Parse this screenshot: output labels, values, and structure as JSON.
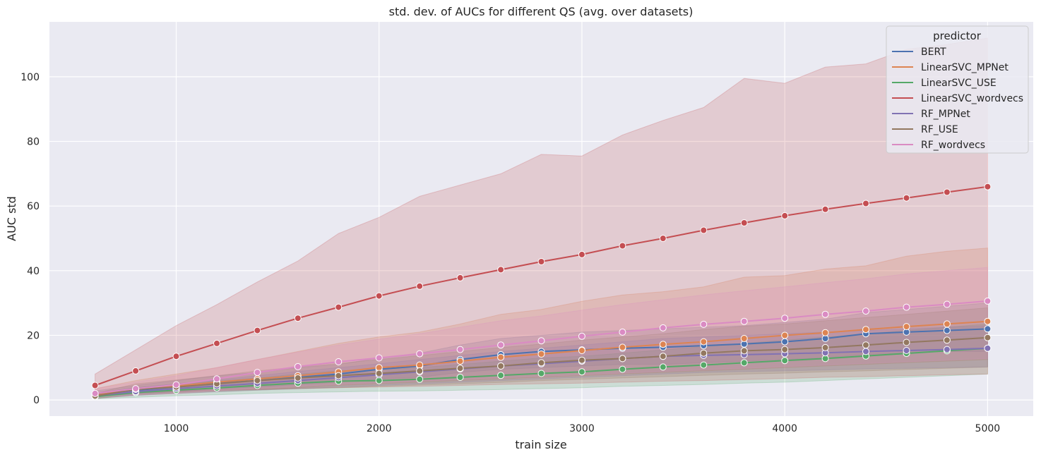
{
  "chart_data": {
    "type": "line",
    "title": "std. dev. of AUCs for different QS (avg. over datasets)",
    "xlabel": "train size",
    "ylabel": "AUC std",
    "xlim": [
      375,
      5225
    ],
    "ylim": [
      -5,
      117
    ],
    "xticks": [
      1000,
      2000,
      3000,
      4000,
      5000
    ],
    "yticks": [
      0,
      20,
      40,
      60,
      80,
      100
    ],
    "grid": true,
    "legend": {
      "title": "predictor",
      "placement": "top-right"
    },
    "x": [
      600,
      800,
      1000,
      1200,
      1400,
      1600,
      1800,
      2000,
      2200,
      2400,
      2600,
      2800,
      3000,
      3200,
      3400,
      3600,
      3800,
      4000,
      4200,
      4400,
      4600,
      4800,
      5000
    ],
    "series": [
      {
        "name": "BERT",
        "color": "#4c72b0",
        "values": [
          1.8,
          3.0,
          4.0,
          5.2,
          6.0,
          7.0,
          8.0,
          9.5,
          10.5,
          12.5,
          14.0,
          15.0,
          15.5,
          16.0,
          16.3,
          16.8,
          17.3,
          18.0,
          19.0,
          20.5,
          21.0,
          21.5,
          22.0
        ],
        "lower": [
          1.0,
          1.8,
          2.5,
          3.5,
          4.0,
          4.8,
          5.5,
          6.5,
          7.0,
          8.5,
          9.5,
          10.0,
          10.5,
          11.0,
          11.0,
          11.5,
          12.0,
          12.5,
          13.0,
          14.0,
          14.5,
          15.0,
          15.0
        ],
        "upper": [
          2.8,
          4.5,
          6.0,
          7.5,
          8.5,
          10.0,
          11.0,
          13.0,
          14.5,
          17.0,
          19.0,
          20.0,
          21.0,
          21.5,
          22.0,
          22.5,
          23.0,
          24.0,
          25.0,
          27.0,
          28.0,
          29.0,
          30.0
        ]
      },
      {
        "name": "LinearSVC_MPNet",
        "color": "#dd8452",
        "values": [
          1.5,
          3.2,
          4.3,
          5.5,
          6.5,
          7.5,
          8.7,
          10.0,
          10.8,
          12.0,
          13.2,
          14.2,
          15.3,
          16.3,
          17.2,
          18.0,
          19.0,
          20.0,
          20.8,
          21.8,
          22.7,
          23.5,
          24.3
        ],
        "lower": [
          0.5,
          1.5,
          2.2,
          2.8,
          3.3,
          3.8,
          4.5,
          5.0,
          5.5,
          6.0,
          6.5,
          7.0,
          7.5,
          8.0,
          8.5,
          9.0,
          9.5,
          10.0,
          10.5,
          11.0,
          11.5,
          12.0,
          12.5
        ],
        "upper": [
          3.5,
          6.0,
          8.0,
          10.0,
          12.5,
          15.0,
          17.5,
          19.5,
          21.0,
          23.5,
          26.5,
          28.0,
          30.5,
          32.5,
          33.5,
          35.0,
          38.0,
          38.5,
          40.5,
          41.5,
          44.5,
          46.0,
          47.0
        ]
      },
      {
        "name": "LinearSVC_USE",
        "color": "#55a868",
        "values": [
          1.0,
          2.3,
          3.0,
          3.7,
          4.5,
          5.2,
          5.8,
          6.0,
          6.4,
          7.0,
          7.6,
          8.2,
          8.7,
          9.5,
          10.2,
          10.8,
          11.5,
          12.2,
          12.8,
          13.6,
          14.4,
          15.2,
          16.0
        ],
        "lower": [
          0.3,
          0.8,
          1.3,
          1.6,
          2.0,
          2.3,
          2.5,
          2.7,
          2.8,
          3.0,
          3.2,
          3.5,
          3.8,
          4.2,
          4.5,
          4.8,
          5.2,
          5.5,
          6.0,
          6.5,
          7.0,
          7.5,
          8.0
        ],
        "upper": [
          1.8,
          3.8,
          4.8,
          5.8,
          6.8,
          8.0,
          9.0,
          9.5,
          10.0,
          11.0,
          12.0,
          13.0,
          13.5,
          14.5,
          15.5,
          16.5,
          17.5,
          18.5,
          19.5,
          20.5,
          21.5,
          22.5,
          23.5
        ]
      },
      {
        "name": "LinearSVC_wordvecs",
        "color": "#c44e52",
        "values": [
          4.5,
          9.0,
          13.5,
          17.5,
          21.5,
          25.3,
          28.7,
          32.2,
          35.2,
          37.8,
          40.3,
          42.8,
          45.0,
          47.7,
          50.0,
          52.5,
          54.8,
          57.0,
          59.0,
          60.8,
          62.5,
          64.3,
          66.0
        ],
        "lower": [
          1.0,
          2.0,
          2.5,
          3.0,
          3.2,
          3.5,
          3.8,
          4.0,
          4.2,
          4.5,
          4.8,
          5.0,
          5.2,
          5.5,
          5.8,
          6.0,
          6.3,
          6.6,
          7.0,
          7.2,
          7.5,
          7.8,
          8.0
        ],
        "upper": [
          8.0,
          15.5,
          23.0,
          29.5,
          36.5,
          43.0,
          51.5,
          56.5,
          63.0,
          66.5,
          70.0,
          76.0,
          75.5,
          82.0,
          86.5,
          90.5,
          99.5,
          98.0,
          103.0,
          104.0,
          108.5,
          110.0,
          112.0
        ]
      },
      {
        "name": "RF_MPNet",
        "color": "#8172b3",
        "values": [
          1.3,
          2.6,
          3.5,
          4.3,
          5.1,
          6.0,
          6.9,
          7.8,
          8.7,
          9.6,
          10.5,
          11.2,
          12.0,
          12.8,
          13.5,
          13.8,
          14.0,
          14.3,
          14.6,
          15.0,
          15.3,
          15.6,
          16.0
        ],
        "lower": [
          0.5,
          1.4,
          2.0,
          2.5,
          3.0,
          3.5,
          4.0,
          4.5,
          5.0,
          5.5,
          6.0,
          6.5,
          7.0,
          7.5,
          8.0,
          8.5,
          8.8,
          9.0,
          9.3,
          9.6,
          9.8,
          10.0,
          10.2
        ],
        "upper": [
          2.2,
          3.8,
          5.0,
          6.2,
          7.5,
          8.8,
          10.0,
          11.2,
          12.5,
          13.8,
          15.0,
          16.0,
          17.0,
          18.0,
          19.0,
          19.5,
          20.0,
          20.5,
          21.0,
          21.5,
          22.0,
          22.5,
          23.0
        ]
      },
      {
        "name": "RF_USE",
        "color": "#937860",
        "values": [
          1.2,
          3.3,
          4.0,
          5.0,
          6.0,
          6.8,
          7.5,
          8.2,
          9.0,
          9.8,
          10.5,
          11.5,
          12.3,
          12.8,
          13.5,
          14.5,
          15.2,
          15.6,
          16.2,
          17.0,
          17.8,
          18.5,
          19.3
        ],
        "lower": [
          0.5,
          1.5,
          2.0,
          2.6,
          3.0,
          3.5,
          3.8,
          4.2,
          4.6,
          5.0,
          5.4,
          6.0,
          6.4,
          6.8,
          7.2,
          7.6,
          8.0,
          8.3,
          8.7,
          9.0,
          9.4,
          9.8,
          10.2
        ],
        "upper": [
          2.0,
          5.0,
          6.2,
          7.5,
          9.0,
          10.2,
          11.3,
          12.5,
          13.7,
          15.0,
          16.2,
          17.3,
          18.5,
          19.5,
          20.5,
          21.8,
          22.8,
          23.5,
          24.5,
          25.5,
          26.5,
          27.5,
          28.5
        ]
      },
      {
        "name": "RF_wordvecs",
        "color": "#da8bc3",
        "values": [
          2.0,
          3.5,
          4.7,
          6.5,
          8.5,
          10.3,
          11.8,
          13.0,
          14.3,
          15.6,
          17.0,
          18.3,
          19.7,
          21.0,
          22.3,
          23.4,
          24.3,
          25.3,
          26.5,
          27.5,
          28.7,
          29.6,
          30.6
        ],
        "lower": [
          0.8,
          1.5,
          2.0,
          2.8,
          3.5,
          4.2,
          4.8,
          5.3,
          5.8,
          6.3,
          6.8,
          7.3,
          7.8,
          8.3,
          8.8,
          9.3,
          9.8,
          10.3,
          10.8,
          11.3,
          11.8,
          12.3,
          12.8
        ],
        "upper": [
          3.5,
          5.5,
          7.5,
          10.0,
          12.5,
          14.8,
          17.0,
          18.8,
          20.5,
          22.5,
          24.5,
          26.0,
          27.8,
          29.5,
          31.0,
          32.5,
          33.8,
          35.0,
          36.3,
          37.5,
          39.0,
          40.0,
          41.0
        ]
      }
    ]
  },
  "style": {
    "plot_background": "#eaeaf2",
    "grid_color": "#ffffff",
    "marker_edge": "#ffffff"
  }
}
